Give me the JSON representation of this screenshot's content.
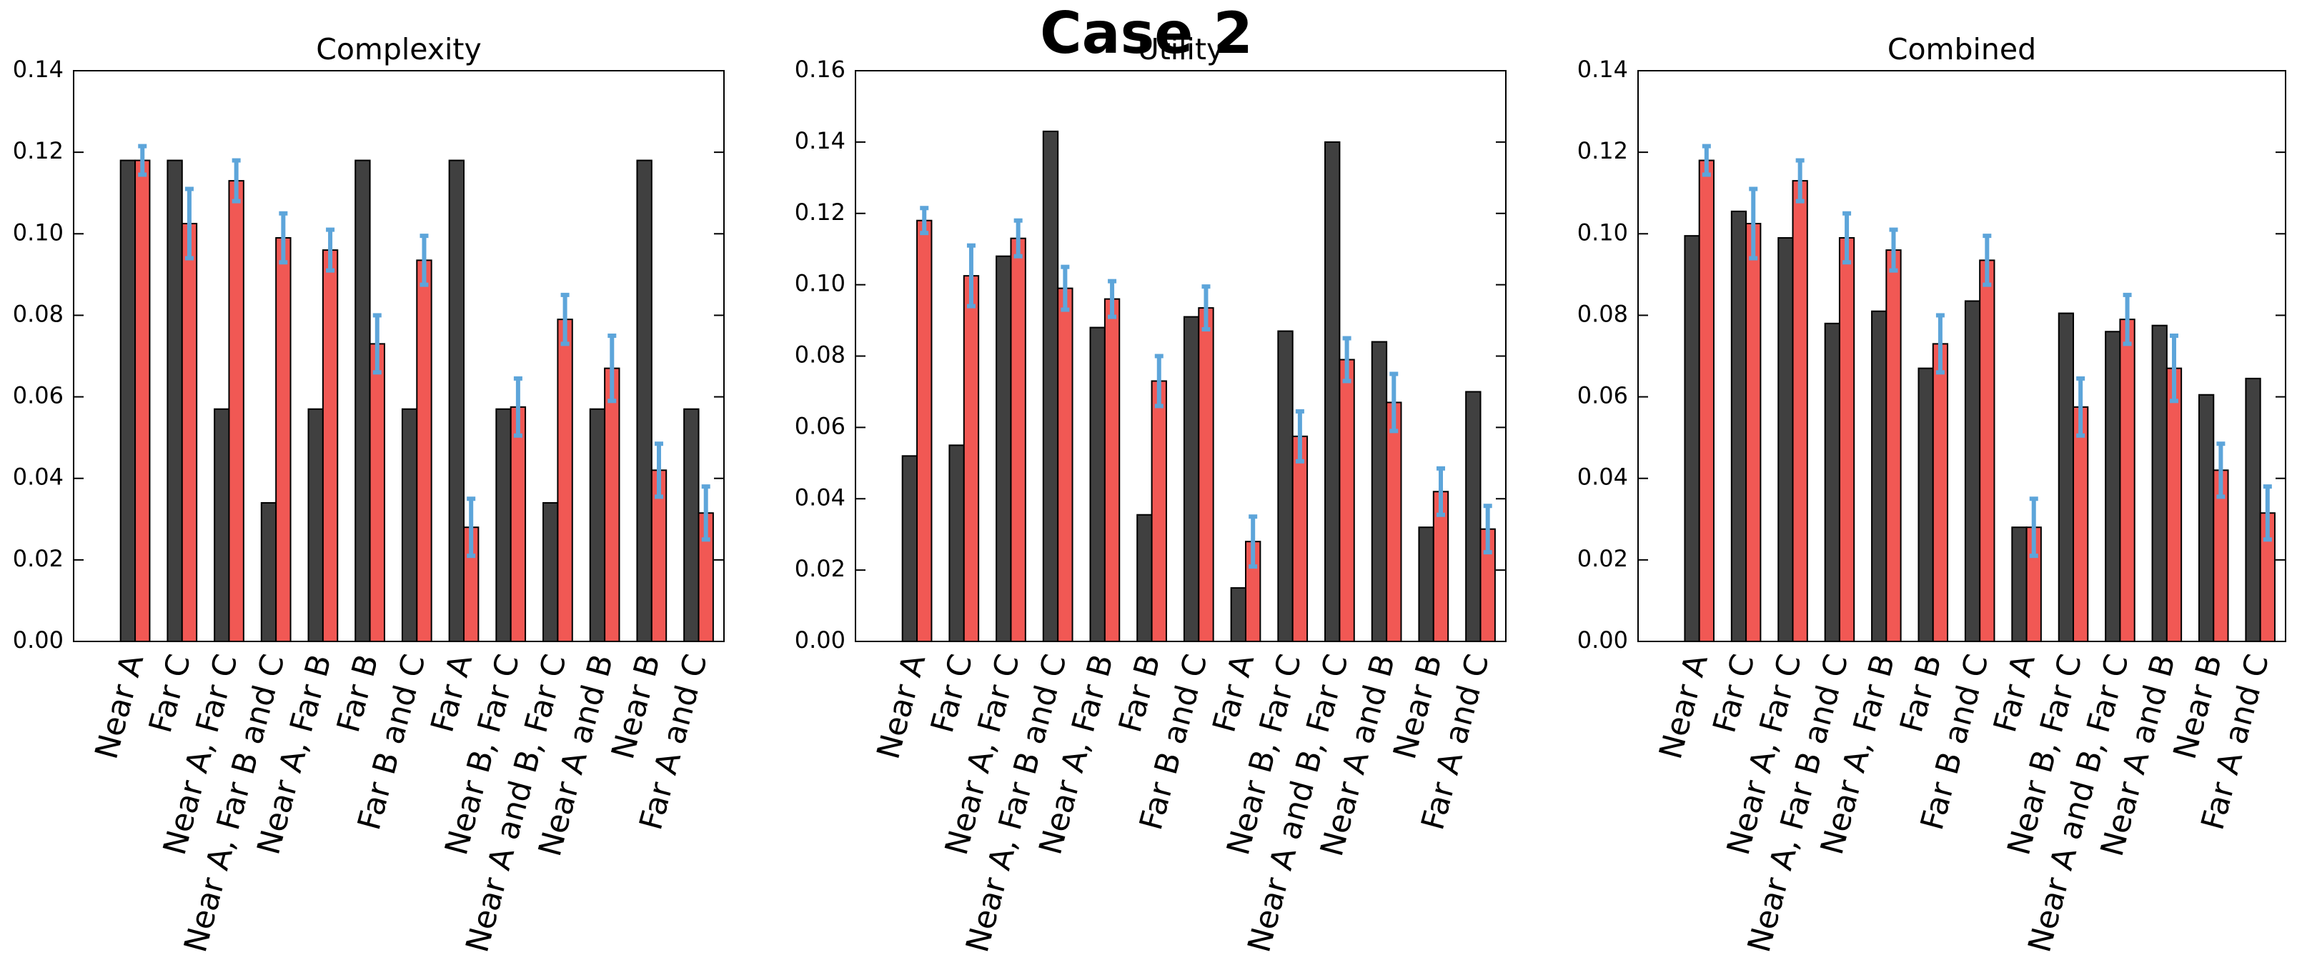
{
  "title": "Case 2",
  "chart_data": [
    {
      "type": "bar",
      "title": "Complexity",
      "categories": [
        "Near A",
        "Far C",
        "Near A, Far C",
        "Near A, Far B and C",
        "Near A, Far B",
        "Far B",
        "Far B and C",
        "Far A",
        "Near B, Far C",
        "Near A and B, Far C",
        "Near A and B",
        "Near B",
        "Far A and C"
      ],
      "series": [
        {
          "color": "#404040",
          "values": [
            0.118,
            0.118,
            0.057,
            0.034,
            0.057,
            0.118,
            0.057,
            0.118,
            0.057,
            0.034,
            0.057,
            0.118,
            0.057
          ]
        },
        {
          "color": "#f15854",
          "error_color": "#5da5da",
          "values": [
            0.118,
            0.1025,
            0.113,
            0.099,
            0.096,
            0.073,
            0.0935,
            0.028,
            0.0575,
            0.079,
            0.067,
            0.042,
            0.0315
          ],
          "errors": [
            0.0035,
            0.0085,
            0.005,
            0.006,
            0.005,
            0.007,
            0.006,
            0.007,
            0.007,
            0.006,
            0.008,
            0.0065,
            0.0065
          ]
        }
      ],
      "ylim": [
        0,
        0.14
      ],
      "yticks": [
        {
          "value": 0,
          "label": "0.00"
        },
        {
          "value": 0.02,
          "label": "0.02"
        },
        {
          "value": 0.04,
          "label": "0.04"
        },
        {
          "value": 0.06,
          "label": "0.06"
        },
        {
          "value": 0.08,
          "label": "0.08"
        },
        {
          "value": 0.1,
          "label": "0.10"
        },
        {
          "value": 0.12,
          "label": "0.12"
        },
        {
          "value": 0.14,
          "label": "0.14"
        }
      ]
    },
    {
      "type": "bar",
      "title": "Utility",
      "categories": [
        "Near A",
        "Far C",
        "Near A, Far C",
        "Near A, Far B and C",
        "Near A, Far B",
        "Far B",
        "Far B and C",
        "Far A",
        "Near B, Far C",
        "Near A and B, Far C",
        "Near A and B",
        "Near B",
        "Far A and C"
      ],
      "series": [
        {
          "color": "#404040",
          "values": [
            0.052,
            0.055,
            0.108,
            0.143,
            0.088,
            0.0355,
            0.091,
            0.015,
            0.087,
            0.14,
            0.084,
            0.032,
            0.07
          ]
        },
        {
          "color": "#f15854",
          "error_color": "#5da5da",
          "values": [
            0.118,
            0.1025,
            0.113,
            0.099,
            0.096,
            0.073,
            0.0935,
            0.028,
            0.0575,
            0.079,
            0.067,
            0.042,
            0.0315
          ],
          "errors": [
            0.0035,
            0.0085,
            0.005,
            0.006,
            0.005,
            0.007,
            0.006,
            0.007,
            0.007,
            0.006,
            0.008,
            0.0065,
            0.0065
          ]
        }
      ],
      "ylim": [
        0,
        0.16
      ],
      "yticks": [
        {
          "value": 0,
          "label": "0.00"
        },
        {
          "value": 0.02,
          "label": "0.02"
        },
        {
          "value": 0.04,
          "label": "0.04"
        },
        {
          "value": 0.06,
          "label": "0.06"
        },
        {
          "value": 0.08,
          "label": "0.08"
        },
        {
          "value": 0.1,
          "label": "0.10"
        },
        {
          "value": 0.12,
          "label": "0.12"
        },
        {
          "value": 0.14,
          "label": "0.14"
        },
        {
          "value": 0.16,
          "label": "0.16"
        }
      ]
    },
    {
      "type": "bar",
      "title": "Combined",
      "categories": [
        "Near A",
        "Far C",
        "Near A, Far C",
        "Near A, Far B and C",
        "Near A, Far B",
        "Far B",
        "Far B and C",
        "Far A",
        "Near B, Far C",
        "Near A and B, Far C",
        "Near A and B",
        "Near B",
        "Far A and C"
      ],
      "series": [
        {
          "color": "#404040",
          "values": [
            0.0995,
            0.1055,
            0.099,
            0.078,
            0.081,
            0.067,
            0.0835,
            0.028,
            0.0805,
            0.076,
            0.0775,
            0.0605,
            0.0645
          ]
        },
        {
          "color": "#f15854",
          "error_color": "#5da5da",
          "values": [
            0.118,
            0.1025,
            0.113,
            0.099,
            0.096,
            0.073,
            0.0935,
            0.028,
            0.0575,
            0.079,
            0.067,
            0.042,
            0.0315
          ],
          "errors": [
            0.0035,
            0.0085,
            0.005,
            0.006,
            0.005,
            0.007,
            0.006,
            0.007,
            0.007,
            0.006,
            0.008,
            0.0065,
            0.0065
          ]
        }
      ],
      "ylim": [
        0,
        0.14
      ],
      "yticks": [
        {
          "value": 0,
          "label": "0.00"
        },
        {
          "value": 0.02,
          "label": "0.02"
        },
        {
          "value": 0.04,
          "label": "0.04"
        },
        {
          "value": 0.06,
          "label": "0.06"
        },
        {
          "value": 0.08,
          "label": "0.08"
        },
        {
          "value": 0.1,
          "label": "0.10"
        },
        {
          "value": 0.12,
          "label": "0.12"
        },
        {
          "value": 0.14,
          "label": "0.14"
        }
      ]
    }
  ]
}
